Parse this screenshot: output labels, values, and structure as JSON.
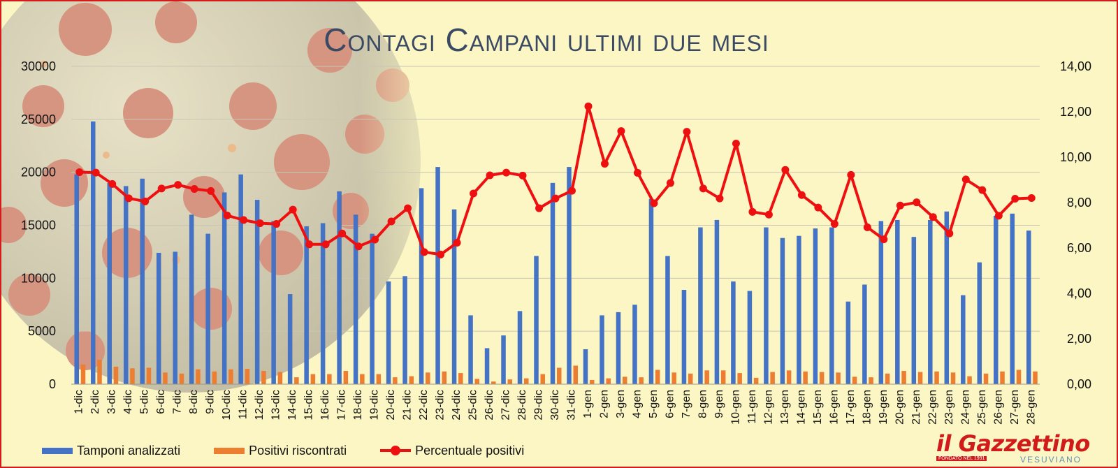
{
  "title": "Contagi Campani ultimi due mesi",
  "legend": {
    "tamponi": "Tamponi analizzati",
    "positivi": "Positivi riscontrati",
    "percentuale": "Percentuale positivi"
  },
  "logo": {
    "main": "il Gazzettino",
    "tag": "FONDATO NEL 1991",
    "sub": "VESUVIANO"
  },
  "colors": {
    "background": "#fbf6c3",
    "border": "#d21c1c",
    "tamponi": "#4472c4",
    "positivi": "#ed7d31",
    "percentuale": "#ee1010",
    "title": "#3b4a63"
  },
  "chart_data": {
    "type": "bar",
    "title": "Contagi Campani ultimi due mesi",
    "categories": [
      "1-dic",
      "2-dic",
      "3-dic",
      "4-dic",
      "5-dic",
      "6-dic",
      "7-dic",
      "8-dic",
      "9-dic",
      "10-dic",
      "11-dic",
      "12-dic",
      "13-dic",
      "14-dic",
      "15-dic",
      "16-dic",
      "17-dic",
      "18-dic",
      "19-dic",
      "20-dic",
      "21-dic",
      "22-dic",
      "23-dic",
      "24-dic",
      "25-dic",
      "26-dic",
      "27-dic",
      "28-dic",
      "29-dic",
      "30-dic",
      "31-dic",
      "1-gen",
      "2-gen",
      "3-gen",
      "4-gen",
      "5-gen",
      "6-gen",
      "7-gen",
      "8-gen",
      "9-gen",
      "10-gen",
      "11-gen",
      "12-gen",
      "13-gen",
      "14-gen",
      "15-gen",
      "16-gen",
      "17-gen",
      "18-gen",
      "19-gen",
      "20-gen",
      "21-gen",
      "22-gen",
      "23-gen",
      "24-gen",
      "25-gen",
      "26-gen",
      "27-gen",
      "28-gen"
    ],
    "y_left": {
      "min": 0,
      "max": 30000,
      "ticks": [
        "0",
        "5000",
        "10000",
        "15000",
        "20000",
        "25000",
        "30000"
      ]
    },
    "y_right": {
      "min": 0,
      "max": 14,
      "ticks": [
        "0,00",
        "2,00",
        "4,00",
        "6,00",
        "8,00",
        "10,00",
        "12,00",
        "14,00"
      ]
    },
    "grid": "horizontal",
    "legend_position": "bottom-left",
    "series": [
      {
        "name": "Tamponi analizzati",
        "type": "bar",
        "axis": "left",
        "values": [
          19800,
          24800,
          19000,
          18700,
          19400,
          12400,
          12500,
          16000,
          14200,
          18100,
          19800,
          17400,
          15400,
          8500,
          14900,
          15200,
          18200,
          16000,
          14200,
          9700,
          10200,
          18500,
          20500,
          16500,
          6500,
          3400,
          4600,
          6900,
          12100,
          19000,
          20500,
          3300,
          6500,
          6800,
          7500,
          17500,
          12100,
          8900,
          14800,
          15500,
          9700,
          8800,
          14800,
          13800,
          14000,
          14700,
          14800,
          7800,
          9400,
          15400,
          15500,
          13900,
          15500,
          16300,
          8400,
          11500,
          15900,
          16100,
          14500
        ]
      },
      {
        "name": "Positivi riscontrati",
        "type": "bar",
        "axis": "left",
        "values": [
          1850,
          2300,
          1650,
          1500,
          1550,
          1100,
          1000,
          1400,
          1200,
          1400,
          1450,
          1250,
          1150,
          650,
          950,
          950,
          1250,
          950,
          950,
          650,
          750,
          1100,
          1200,
          1050,
          500,
          250,
          450,
          550,
          950,
          1550,
          1750,
          400,
          550,
          700,
          650,
          1350,
          1100,
          1000,
          1300,
          1300,
          1050,
          600,
          1150,
          1300,
          1200,
          1150,
          1100,
          700,
          650,
          1000,
          1250,
          1150,
          1200,
          1100,
          750,
          1000,
          1200,
          1350,
          1200
        ]
      },
      {
        "name": "Percentuale positivi",
        "type": "line",
        "axis": "right",
        "values": [
          9.34,
          9.32,
          8.82,
          8.19,
          8.05,
          8.62,
          8.78,
          8.6,
          8.51,
          7.43,
          7.23,
          7.09,
          7.06,
          7.69,
          6.16,
          6.16,
          6.64,
          6.07,
          6.37,
          7.17,
          7.75,
          5.82,
          5.71,
          6.23,
          8.4,
          9.2,
          9.32,
          9.19,
          7.75,
          8.18,
          8.52,
          12.24,
          9.71,
          11.15,
          9.31,
          7.97,
          8.86,
          11.12,
          8.62,
          8.18,
          10.6,
          7.59,
          7.47,
          9.44,
          8.33,
          7.78,
          7.06,
          9.22,
          6.91,
          6.38,
          7.87,
          8.01,
          7.36,
          6.64,
          9.02,
          8.55,
          7.42,
          8.17,
          8.2
        ]
      }
    ]
  }
}
